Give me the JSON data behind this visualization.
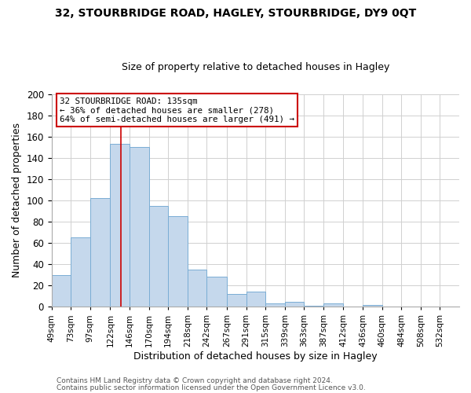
{
  "title": "32, STOURBRIDGE ROAD, HAGLEY, STOURBRIDGE, DY9 0QT",
  "subtitle": "Size of property relative to detached houses in Hagley",
  "xlabel": "Distribution of detached houses by size in Hagley",
  "ylabel": "Number of detached properties",
  "bar_color": "#c5d8ec",
  "bar_edge_color": "#7aadd4",
  "categories": [
    "49sqm",
    "73sqm",
    "97sqm",
    "122sqm",
    "146sqm",
    "170sqm",
    "194sqm",
    "218sqm",
    "242sqm",
    "267sqm",
    "291sqm",
    "315sqm",
    "339sqm",
    "363sqm",
    "387sqm",
    "412sqm",
    "436sqm",
    "460sqm",
    "484sqm",
    "508sqm",
    "532sqm"
  ],
  "values": [
    30,
    65,
    102,
    153,
    150,
    95,
    85,
    35,
    28,
    12,
    14,
    3,
    5,
    1,
    3,
    0,
    2,
    0,
    0,
    0,
    0
  ],
  "ylim": [
    0,
    200
  ],
  "yticks": [
    0,
    20,
    40,
    60,
    80,
    100,
    120,
    140,
    160,
    180,
    200
  ],
  "annotation_title": "32 STOURBRIDGE ROAD: 135sqm",
  "annotation_line1": "← 36% of detached houses are smaller (278)",
  "annotation_line2": "64% of semi-detached houses are larger (491) →",
  "annotation_box_color": "#ffffff",
  "annotation_box_edge_color": "#cc0000",
  "property_line_x": 135,
  "property_line_color": "#cc0000",
  "background_color": "#ffffff",
  "grid_color": "#d0d0d0",
  "footer1": "Contains HM Land Registry data © Crown copyright and database right 2024.",
  "footer2": "Contains public sector information licensed under the Open Government Licence v3.0."
}
